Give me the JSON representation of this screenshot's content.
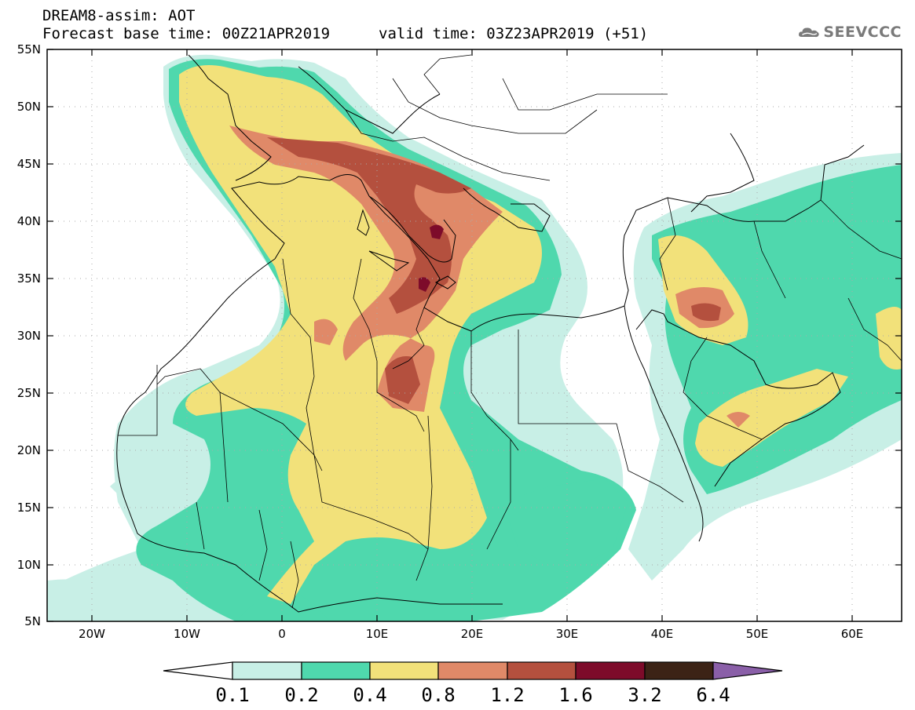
{
  "header": {
    "title_line1": "DREAM8-assim: AOT",
    "title_line2": "Forecast base time: 00Z21APR2019",
    "valid_time": "valid time: 03Z23APR2019 (+51)",
    "logo_text": "SEEVCCC"
  },
  "map": {
    "lon_range": [
      -25,
      65
    ],
    "lat_range": [
      5,
      55
    ],
    "lat_labels": [
      "55N",
      "50N",
      "45N",
      "40N",
      "35N",
      "30N",
      "25N",
      "20N",
      "15N",
      "10N",
      "5N"
    ],
    "lon_labels": [
      "20W",
      "10W",
      "0",
      "10E",
      "20E",
      "30E",
      "40E",
      "50E",
      "60E"
    ],
    "grid": true
  },
  "colorbar": {
    "labels": [
      "0.1",
      "0.2",
      "0.4",
      "0.8",
      "1.2",
      "1.6",
      "3.2",
      "6.4"
    ],
    "colors": [
      "#ffffff",
      "#c8efe6",
      "#4fd8ad",
      "#f2e17a",
      "#e08968",
      "#b4503e",
      "#7d0b2a",
      "#3c2316",
      "#8a5fa8"
    ]
  }
}
